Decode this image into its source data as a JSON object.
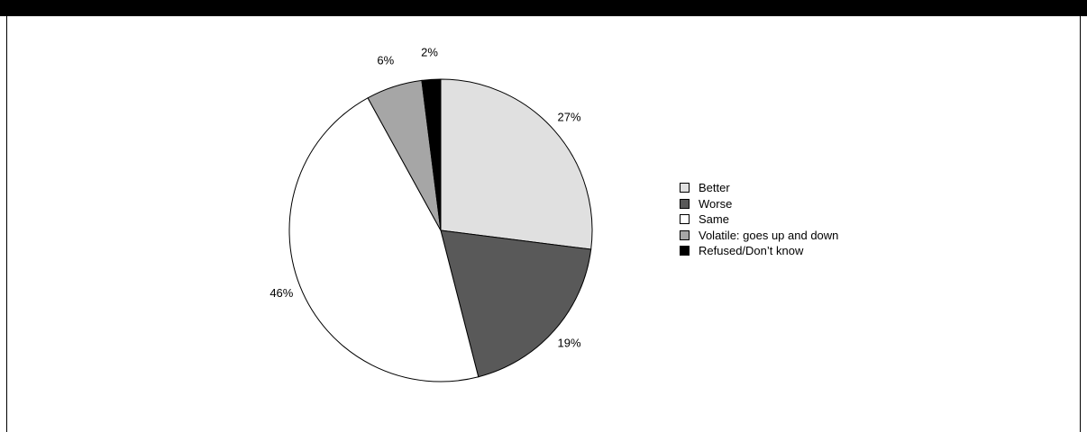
{
  "chart_data": {
    "type": "pie",
    "title": "",
    "slices": [
      {
        "label": "Better",
        "value": 27,
        "value_label": "27%",
        "color": "#e0e0e0"
      },
      {
        "label": "Worse",
        "value": 19,
        "value_label": "19%",
        "color": "#595959"
      },
      {
        "label": "Same",
        "value": 46,
        "value_label": "46%",
        "color": "#ffffff"
      },
      {
        "label": "Volatile: goes up and down",
        "value": 6,
        "value_label": "6%",
        "color": "#a6a6a6"
      },
      {
        "label": "Refused/Don’t know",
        "value": 2,
        "value_label": "2%",
        "color": "#000000"
      }
    ],
    "start_angle": "12 o'clock",
    "direction": "clockwise",
    "legend_position": "right"
  }
}
